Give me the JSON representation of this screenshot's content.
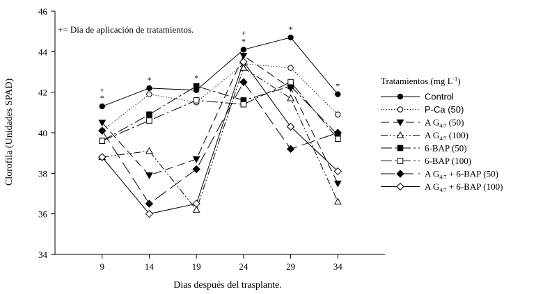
{
  "chart_data": {
    "type": "line",
    "xlabel": "Dias después del trasplante.",
    "ylabel": "Clorofila (Unidades SPAD)",
    "x": [
      9,
      14,
      19,
      24,
      29,
      34
    ],
    "xticks": [
      "9",
      "14",
      "19",
      "24",
      "29",
      "34"
    ],
    "ylim": [
      34,
      46
    ],
    "yticks": [
      "34",
      "36",
      "38",
      "40",
      "42",
      "44",
      "46"
    ],
    "grid": false,
    "annotation": "+= Dia de aplicación  de tratamientos.",
    "significance_marks": [
      {
        "x": 9,
        "marks": "+\n*"
      },
      {
        "x": 14,
        "marks": "*"
      },
      {
        "x": 19,
        "marks": "*"
      },
      {
        "x": 24,
        "marks": "+\n*"
      },
      {
        "x": 29,
        "marks": "*"
      },
      {
        "x": 34,
        "marks": "*"
      }
    ],
    "legend": {
      "title": "Tratamientos (mg L",
      "title_sup": "-1",
      "title_end": ")",
      "position": "right"
    },
    "series": [
      {
        "name": "Control",
        "sub": "",
        "suffix": "",
        "values": [
          41.3,
          42.2,
          42.1,
          44.1,
          44.7,
          41.9
        ],
        "dash": "",
        "marker": "circle",
        "filled": true
      },
      {
        "name": "P-Ca (50)",
        "sub": "",
        "suffix": "",
        "values": [
          40.1,
          41.9,
          41.5,
          43.4,
          43.2,
          40.9
        ],
        "dash": "1.2,2.6",
        "marker": "circle",
        "filled": false
      },
      {
        "name": "A G",
        "sub": "4/7",
        "suffix": " (50)",
        "values": [
          40.5,
          37.9,
          38.7,
          43.8,
          42.2,
          37.5
        ],
        "dash": "12,6",
        "marker": "triangle-down",
        "filled": true
      },
      {
        "name": "A G",
        "sub": "4/7",
        "suffix": " (100)",
        "values": [
          38.8,
          39.1,
          36.2,
          43.2,
          41.7,
          36.6
        ],
        "dash": "10,3,2,3,2,3",
        "marker": "triangle-up",
        "filled": false
      },
      {
        "name": "6-BAP (50)",
        "sub": "",
        "suffix": "",
        "values": [
          39.6,
          40.9,
          42.3,
          41.6,
          42.3,
          39.9
        ],
        "dash": "16,4,3,4",
        "marker": "square",
        "filled": true
      },
      {
        "name": "6-BAP (100)",
        "sub": "",
        "suffix": "",
        "values": [
          39.6,
          40.6,
          41.6,
          41.4,
          42.5,
          39.7
        ],
        "dash": "16,4,3,4",
        "marker": "square",
        "filled": false
      },
      {
        "name": "A G",
        "sub": "4/7",
        "suffix": "  + 6-BAP (50)",
        "values": [
          40.1,
          36.5,
          38.2,
          42.5,
          39.2,
          40.0
        ],
        "dash": "20,7",
        "marker": "diamond",
        "filled": true
      },
      {
        "name": "A G",
        "sub": "4/7",
        "suffix": "  + 6-BAP (100)",
        "values": [
          38.8,
          36.0,
          36.5,
          43.5,
          40.3,
          38.1
        ],
        "dash": "",
        "marker": "diamond",
        "filled": false
      }
    ]
  }
}
